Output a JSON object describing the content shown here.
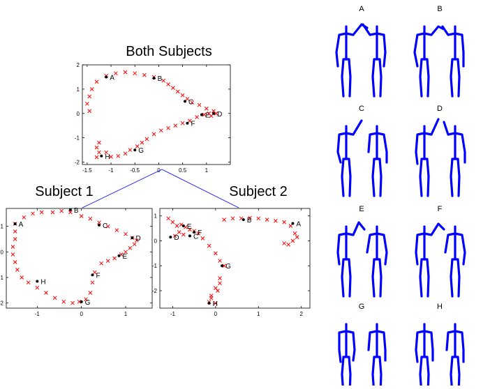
{
  "chart_data": [
    {
      "type": "scatter",
      "title": "Both Subjects",
      "xlim": [
        -1.6,
        1.5
      ],
      "ylim": [
        -2.1,
        2.0
      ],
      "xticks": [
        -1.5,
        -1,
        -0.5,
        0,
        0.5,
        1
      ],
      "xtick_labels": [
        "-1.5",
        "-1",
        "-0.5",
        "0",
        "0.5",
        "1"
      ],
      "yticks": [
        2,
        1,
        0,
        -1,
        -2
      ],
      "ytick_labels": [
        "2",
        "1",
        "0",
        "-1",
        "-2"
      ],
      "trajectory": [
        [
          -1.3,
          -1.8
        ],
        [
          -1.25,
          -1.6
        ],
        [
          -1.3,
          -1.4
        ],
        [
          -1.25,
          -1.2
        ],
        [
          -1.1,
          -1.6
        ],
        [
          -1.0,
          -1.78
        ],
        [
          -0.85,
          -1.75
        ],
        [
          -0.7,
          -1.65
        ],
        [
          -0.6,
          -1.5
        ],
        [
          -0.45,
          -1.35
        ],
        [
          -0.35,
          -1.2
        ],
        [
          -0.25,
          -1.05
        ],
        [
          -0.1,
          -0.85
        ],
        [
          0.05,
          -0.7
        ],
        [
          0.2,
          -0.6
        ],
        [
          0.35,
          -0.5
        ],
        [
          0.5,
          -0.4
        ],
        [
          0.65,
          -0.3
        ],
        [
          0.8,
          -0.15
        ],
        [
          0.95,
          -0.05
        ],
        [
          1.05,
          0.0
        ],
        [
          1.15,
          0.1
        ],
        [
          1.2,
          0.0
        ],
        [
          1.1,
          -0.1
        ],
        [
          1.0,
          0.2
        ],
        [
          0.85,
          0.35
        ],
        [
          0.7,
          0.45
        ],
        [
          0.6,
          0.6
        ],
        [
          0.5,
          0.75
        ],
        [
          0.4,
          0.9
        ],
        [
          0.3,
          1.05
        ],
        [
          0.2,
          1.2
        ],
        [
          0.1,
          1.35
        ],
        [
          -0.1,
          1.5
        ],
        [
          -0.3,
          1.58
        ],
        [
          -0.5,
          1.65
        ],
        [
          -0.7,
          1.7
        ],
        [
          -0.9,
          1.65
        ],
        [
          -1.1,
          1.55
        ],
        [
          -1.3,
          1.3
        ],
        [
          -1.4,
          1.0
        ],
        [
          -1.45,
          0.7
        ],
        [
          -1.5,
          0.4
        ],
        [
          -1.45,
          0.1
        ]
      ],
      "keyframes": [
        {
          "label": "A",
          "x": -1.1,
          "y": 1.5
        },
        {
          "label": "B",
          "x": -0.1,
          "y": 1.45
        },
        {
          "label": "C",
          "x": 0.55,
          "y": 0.5
        },
        {
          "label": "D",
          "x": 1.15,
          "y": 0.0
        },
        {
          "label": "E",
          "x": 0.9,
          "y": -0.05
        },
        {
          "label": "F",
          "x": 0.6,
          "y": -0.4
        },
        {
          "label": "G",
          "x": -0.5,
          "y": -1.5
        },
        {
          "label": "H",
          "x": -1.2,
          "y": -1.75
        }
      ]
    },
    {
      "type": "scatter",
      "title": "Subject 1",
      "xlim": [
        -1.7,
        1.6
      ],
      "ylim": [
        -2.2,
        1.7
      ],
      "xticks": [
        -1,
        0,
        1
      ],
      "xtick_labels": [
        "-1",
        "0",
        "1"
      ],
      "yticks": [
        1,
        0,
        -1,
        -2
      ],
      "ytick_labels": [
        "1",
        "0",
        "-1",
        "-2"
      ],
      "trajectory": [
        [
          -1.5,
          1.1
        ],
        [
          -1.3,
          1.35
        ],
        [
          -1.1,
          1.5
        ],
        [
          -0.9,
          1.55
        ],
        [
          -0.65,
          1.55
        ],
        [
          -0.45,
          1.6
        ],
        [
          -0.25,
          1.55
        ],
        [
          0.0,
          1.4
        ],
        [
          0.2,
          1.3
        ],
        [
          0.4,
          1.15
        ],
        [
          0.6,
          1.0
        ],
        [
          0.8,
          0.85
        ],
        [
          1.0,
          0.7
        ],
        [
          1.15,
          0.55
        ],
        [
          1.25,
          0.45
        ],
        [
          1.2,
          0.3
        ],
        [
          1.1,
          0.15
        ],
        [
          1.0,
          0.0
        ],
        [
          0.9,
          -0.1
        ],
        [
          0.75,
          -0.25
        ],
        [
          0.6,
          -0.35
        ],
        [
          0.45,
          -0.45
        ],
        [
          0.3,
          -0.8
        ],
        [
          0.25,
          -1.2
        ],
        [
          0.2,
          -1.6
        ],
        [
          0.1,
          -1.85
        ],
        [
          -0.05,
          -1.95
        ],
        [
          -0.2,
          -2.0
        ],
        [
          -0.4,
          -1.95
        ],
        [
          -0.6,
          -1.8
        ],
        [
          -0.8,
          -1.6
        ],
        [
          -1.0,
          -1.4
        ],
        [
          -1.2,
          -1.2
        ],
        [
          -1.35,
          -1.0
        ],
        [
          -1.45,
          -0.7
        ],
        [
          -1.5,
          -0.4
        ],
        [
          -1.55,
          -0.1
        ],
        [
          -1.55,
          0.2
        ],
        [
          -1.5,
          0.5
        ],
        [
          -1.5,
          0.8
        ]
      ],
      "keyframes": [
        {
          "label": "A",
          "x": -1.5,
          "y": 1.1
        },
        {
          "label": "B",
          "x": -0.25,
          "y": 1.65
        },
        {
          "label": "C",
          "x": 0.4,
          "y": 1.05
        },
        {
          "label": "D",
          "x": 1.15,
          "y": 0.55
        },
        {
          "label": "E",
          "x": 0.85,
          "y": -0.15
        },
        {
          "label": "F",
          "x": 0.25,
          "y": -0.9
        },
        {
          "label": "G",
          "x": 0.0,
          "y": -1.95
        },
        {
          "label": "H",
          "x": -1.0,
          "y": -1.15
        }
      ]
    },
    {
      "type": "scatter",
      "title": "Subject 2",
      "xlim": [
        -1.3,
        2.2
      ],
      "ylim": [
        -2.7,
        1.3
      ],
      "xticks": [
        -1,
        0,
        1,
        2
      ],
      "xtick_labels": [
        "-1",
        "0",
        "1",
        "2"
      ],
      "yticks": [
        1,
        0,
        -1,
        -2
      ],
      "ytick_labels": [
        "1",
        "0",
        "-1",
        "-2"
      ],
      "trajectory": [
        [
          -1.1,
          0.9
        ],
        [
          -1.0,
          0.75
        ],
        [
          -0.9,
          0.6
        ],
        [
          -0.8,
          0.65
        ],
        [
          -0.7,
          0.55
        ],
        [
          -0.6,
          0.45
        ],
        [
          -0.5,
          0.4
        ],
        [
          -0.4,
          0.3
        ],
        [
          -0.3,
          0.1
        ],
        [
          -0.15,
          -0.2
        ],
        [
          0.0,
          -0.5
        ],
        [
          0.1,
          -0.8
        ],
        [
          0.2,
          -1.0
        ],
        [
          0.1,
          -1.5
        ],
        [
          0.0,
          -1.9
        ],
        [
          -0.1,
          -2.2
        ],
        [
          -0.15,
          -2.45
        ],
        [
          0.0,
          -2.5
        ],
        [
          -0.1,
          -2.3
        ],
        [
          0.05,
          -2.0
        ],
        [
          0.1,
          -1.7
        ],
        [
          0.2,
          0.85
        ],
        [
          0.4,
          0.9
        ],
        [
          0.6,
          0.9
        ],
        [
          0.8,
          0.92
        ],
        [
          1.0,
          0.9
        ],
        [
          1.2,
          0.85
        ],
        [
          1.4,
          0.8
        ],
        [
          1.6,
          0.75
        ],
        [
          1.75,
          0.6
        ],
        [
          1.85,
          0.3
        ],
        [
          1.8,
          0.0
        ],
        [
          1.7,
          -0.15
        ],
        [
          1.6,
          -0.1
        ],
        [
          1.9,
          0.15
        ],
        [
          -0.95,
          0.2
        ],
        [
          -0.85,
          0.35
        ],
        [
          -0.75,
          0.25
        ]
      ],
      "keyframes": [
        {
          "label": "A",
          "x": 1.8,
          "y": 0.7
        },
        {
          "label": "B",
          "x": 0.65,
          "y": 0.85
        },
        {
          "label": "C",
          "x": -0.6,
          "y": 0.2
        },
        {
          "label": "D",
          "x": -1.05,
          "y": 0.15
        },
        {
          "label": "E",
          "x": -0.75,
          "y": 0.6
        },
        {
          "label": "F",
          "x": -0.5,
          "y": 0.35
        },
        {
          "label": "G",
          "x": 0.15,
          "y": -1.0
        },
        {
          "label": "H",
          "x": -0.15,
          "y": -2.5
        }
      ]
    }
  ],
  "figures": [
    {
      "label": "A"
    },
    {
      "label": "B"
    },
    {
      "label": "C"
    },
    {
      "label": "D"
    },
    {
      "label": "E"
    },
    {
      "label": "F"
    },
    {
      "label": "G"
    },
    {
      "label": "H"
    }
  ],
  "colors": {
    "trajectory": "#ff0000",
    "keyframe": "#000000",
    "figure": "#0000ff",
    "connector": "#0000ff"
  }
}
